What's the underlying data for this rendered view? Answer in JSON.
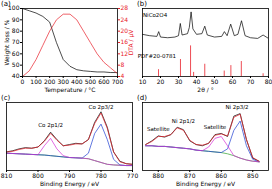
{
  "chart_data": [
    {
      "type": "line",
      "title": "(a)",
      "xlabel": "Temperature / °C",
      "ylabel": "Weight loss / %",
      "y2label": "DTA / μV",
      "x": [
        0,
        50,
        100,
        150,
        200,
        250,
        300,
        350,
        400,
        450,
        500,
        550,
        600,
        650,
        700
      ],
      "xlim": [
        0,
        700
      ],
      "xticks": [
        0,
        100,
        200,
        300,
        400,
        500,
        600,
        700
      ],
      "ylim": [
        40,
        100
      ],
      "yticks": [
        40,
        50,
        60,
        70,
        80,
        90,
        100
      ],
      "y2lim": [
        4,
        28
      ],
      "y2ticks": [
        4,
        8,
        12,
        16,
        20,
        24,
        28
      ],
      "series": [
        {
          "color": "#000000",
          "values": [
            100,
            98,
            96,
            93,
            88,
            70,
            55,
            49,
            46,
            45,
            44.5,
            44,
            44,
            43.5,
            43.5
          ]
        },
        {
          "color": "#e8202a",
          "axis": "y2",
          "values": [
            4,
            6,
            10,
            15,
            20,
            24,
            26,
            26,
            24,
            20,
            16,
            12,
            9,
            7,
            5
          ]
        }
      ]
    },
    {
      "type": "line",
      "title": "(b)",
      "xlabel": "2θ / °",
      "tick_labels": "x",
      "xlim": [
        10,
        80
      ],
      "xticks": [
        10,
        20,
        30,
        40,
        50,
        60,
        70,
        80
      ],
      "ylim": [
        0,
        100
      ],
      "yticks": [],
      "series": [
        {
          "type": "line",
          "color": "#000000",
          "x": [
            10,
            14,
            18,
            19,
            20,
            24,
            28,
            30,
            31,
            32,
            35,
            36,
            37,
            38,
            40,
            43,
            44.6,
            46,
            50,
            54,
            55.5,
            57,
            59,
            61,
            63,
            65,
            67,
            70,
            74,
            77,
            80
          ],
          "values": [
            62,
            60,
            59,
            66,
            58,
            57,
            58,
            60,
            78,
            61,
            63,
            72,
            95,
            70,
            62,
            63,
            74,
            61,
            58,
            59,
            66,
            60,
            77,
            60,
            62,
            82,
            60,
            57,
            56,
            61,
            56
          ]
        },
        {
          "type": "bar",
          "color": "#e8202a",
          "x": [
            18.9,
            31.1,
            36.7,
            38.4,
            44.6,
            55.4,
            59.1,
            64.9,
            77
          ],
          "values": [
            10,
            25,
            45,
            6,
            18,
            8,
            16,
            22,
            4
          ]
        }
      ],
      "annotations": [
        {
          "text": "NiCo2O4",
          "x": 17,
          "y": 90
        },
        {
          "text": "PDF#20-0781",
          "x": 18,
          "y": 30
        }
      ]
    },
    {
      "type": "line",
      "title": "(c)",
      "xlabel": "Binding Energy / eV",
      "tick_labels": "x",
      "x": [
        810,
        808,
        806,
        804,
        802,
        800,
        798,
        796,
        794,
        792,
        790,
        788,
        786,
        784,
        782,
        780,
        778,
        776,
        774,
        772,
        770
      ],
      "xlim": [
        810,
        770
      ],
      "xticks": [
        810,
        800,
        790,
        780,
        770
      ],
      "ylim": [
        0,
        110
      ],
      "yticks": [],
      "series": [
        {
          "color": "#000000",
          "values": [
            30,
            32,
            35,
            37,
            36,
            38,
            48,
            62,
            50,
            40,
            42,
            44,
            43,
            50,
            78,
            95,
            70,
            30,
            15,
            11,
            10
          ]
        },
        {
          "color": "#2ca02c",
          "values": [
            28,
            27.5,
            27,
            26.5,
            26,
            25.5,
            25,
            24,
            23,
            22,
            21,
            20.5,
            20,
            19,
            16,
            13,
            10,
            9,
            8.5,
            8,
            8
          ]
        },
        {
          "color": "#1f3fd1",
          "values": [
            28,
            27.5,
            27,
            26.5,
            26,
            25.5,
            25,
            24,
            23,
            22,
            21,
            20.5,
            20,
            28,
            60,
            75,
            50,
            18,
            9,
            8,
            8
          ]
        },
        {
          "color": "#d62bd6",
          "values": [
            28,
            27.5,
            27,
            26.5,
            26,
            25.5,
            40,
            52,
            35,
            24,
            21,
            20.5,
            20,
            19,
            16,
            13,
            10,
            9,
            8.5,
            8,
            8
          ]
        },
        {
          "color": "#e8202a",
          "values": [
            30,
            31,
            34,
            36,
            36,
            38,
            47,
            60,
            49,
            40,
            41,
            43,
            43,
            50,
            76,
            93,
            68,
            30,
            14,
            11,
            10
          ]
        }
      ],
      "annotations": [
        {
          "text": "Co 2p1/2",
          "x": 796,
          "y": 74
        },
        {
          "text": "Co 2p3/2",
          "x": 780,
          "y": 103
        }
      ]
    },
    {
      "type": "line",
      "title": "(d)",
      "xlabel": "Binding Energy / eV",
      "tick_labels": "x",
      "x": [
        884,
        882,
        880,
        878,
        876,
        874,
        872,
        870,
        868,
        866,
        864,
        862,
        860,
        858,
        856,
        854,
        852,
        850,
        848
      ],
      "xlim": [
        885,
        845
      ],
      "xticks": [
        880,
        870,
        860,
        850
      ],
      "ylim": [
        0,
        110
      ],
      "yticks": [],
      "series": [
        {
          "color": "#000000",
          "values": [
            42,
            48,
            56,
            54,
            58,
            70,
            66,
            48,
            42,
            40,
            44,
            58,
            60,
            55,
            88,
            92,
            50,
            20,
            15
          ]
        },
        {
          "color": "#2ca02c",
          "values": [
            40,
            40,
            39,
            39,
            38,
            37,
            36,
            35,
            33,
            32,
            31,
            30,
            29,
            27,
            24,
            20,
            17,
            15,
            14
          ]
        },
        {
          "color": "#1f3fd1",
          "values": [
            40,
            40,
            39,
            39,
            38,
            37,
            36,
            35,
            33,
            32,
            31,
            30,
            29,
            35,
            65,
            80,
            40,
            18,
            14
          ]
        },
        {
          "color": "#d62bd6",
          "values": [
            40,
            40,
            39,
            39,
            38,
            37,
            36,
            35,
            33,
            32,
            38,
            52,
            55,
            40,
            24,
            20,
            17,
            15,
            14
          ]
        },
        {
          "color": "#e8202a",
          "values": [
            42,
            47,
            55,
            55,
            58,
            69,
            65,
            49,
            42,
            41,
            44,
            57,
            59,
            56,
            86,
            91,
            50,
            21,
            15
          ]
        }
      ],
      "annotations": [
        {
          "text": "Satellite",
          "x": 880,
          "y": 66
        },
        {
          "text": "Ni 2p1/2",
          "x": 872,
          "y": 80
        },
        {
          "text": "Satellite",
          "x": 862,
          "y": 70
        },
        {
          "text": "Ni 2p3/2",
          "x": 855,
          "y": 102
        }
      ]
    }
  ]
}
